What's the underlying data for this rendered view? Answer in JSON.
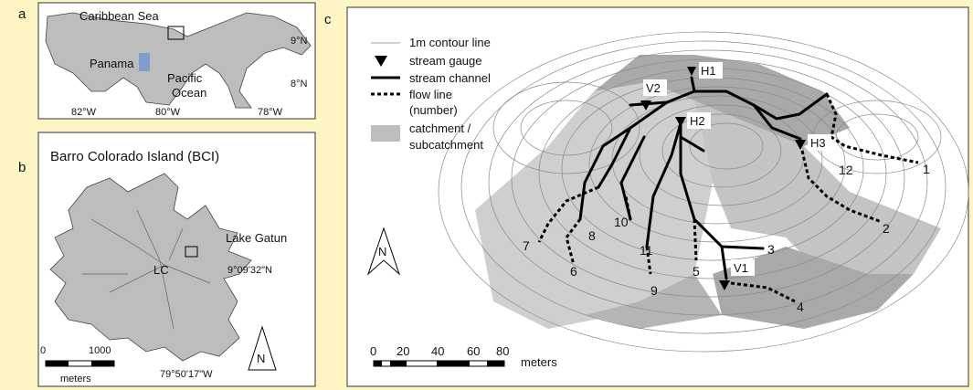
{
  "panel_a": {
    "letter": "a",
    "caribbean_sea": "Caribbean Sea",
    "panama": "Panama",
    "pacific_ocean": [
      "Pacific",
      "Ocean"
    ],
    "lat_labels": [
      "9°N",
      "8°N"
    ],
    "lon_labels": [
      "82°W",
      "80°W",
      "78°W"
    ]
  },
  "panel_b": {
    "letter": "b",
    "title": "Barro Colorado Island (BCI)",
    "lake": "Lake Gatun",
    "lat_label": "9°09'32\"N",
    "lon_label": "79°50'17\"W",
    "site": "LC",
    "scale_labels": [
      0,
      1000
    ],
    "scale_unit": "meters",
    "north": "N"
  },
  "panel_c": {
    "letter": "c",
    "legend": {
      "contour": "1m contour line",
      "gauge": "stream gauge",
      "channel": "stream channel",
      "flow_line": [
        "flow line",
        "(number)"
      ],
      "catchment": [
        "catchment /",
        "subcatchment"
      ]
    },
    "gauges": [
      "H1",
      "V2",
      "H2",
      "H3",
      "V1"
    ],
    "flow_lines": [
      1,
      12,
      2,
      3,
      4,
      5,
      6,
      7,
      8,
      9,
      10,
      11
    ],
    "scale_labels": [
      0,
      20,
      40,
      60,
      80
    ],
    "scale_unit": "meters",
    "north": "N"
  }
}
